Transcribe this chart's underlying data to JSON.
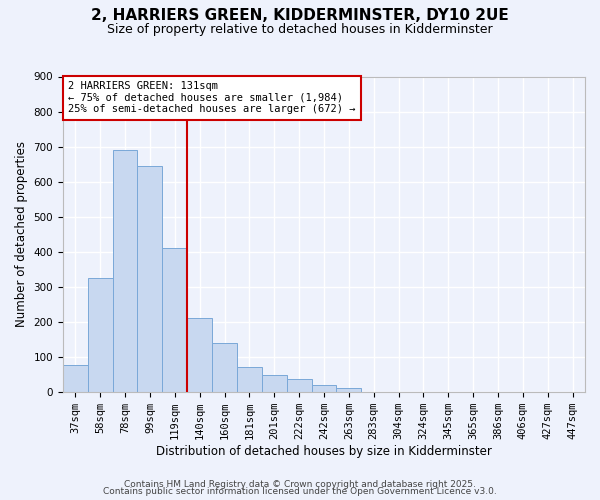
{
  "title": "2, HARRIERS GREEN, KIDDERMINSTER, DY10 2UE",
  "subtitle": "Size of property relative to detached houses in Kidderminster",
  "xlabel": "Distribution of detached houses by size in Kidderminster",
  "ylabel": "Number of detached properties",
  "bin_labels": [
    "37sqm",
    "58sqm",
    "78sqm",
    "99sqm",
    "119sqm",
    "140sqm",
    "160sqm",
    "181sqm",
    "201sqm",
    "222sqm",
    "242sqm",
    "263sqm",
    "283sqm",
    "304sqm",
    "324sqm",
    "345sqm",
    "365sqm",
    "386sqm",
    "406sqm",
    "427sqm",
    "447sqm"
  ],
  "bar_heights": [
    75,
    325,
    690,
    645,
    410,
    210,
    140,
    70,
    47,
    35,
    20,
    10,
    0,
    0,
    0,
    0,
    0,
    0,
    0,
    0,
    0
  ],
  "bar_color": "#c8d8f0",
  "bar_edge_color": "#7aa8d8",
  "vline_x": 4.5,
  "vline_color": "#cc0000",
  "annotation_text": "2 HARRIERS GREEN: 131sqm\n← 75% of detached houses are smaller (1,984)\n25% of semi-detached houses are larger (672) →",
  "annotation_box_color": "#ffffff",
  "annotation_box_edge": "#cc0000",
  "ylim": [
    0,
    900
  ],
  "yticks": [
    0,
    100,
    200,
    300,
    400,
    500,
    600,
    700,
    800,
    900
  ],
  "footer1": "Contains HM Land Registry data © Crown copyright and database right 2025.",
  "footer2": "Contains public sector information licensed under the Open Government Licence v3.0.",
  "bg_color": "#eef2fc",
  "plot_bg_color": "#eef2fc",
  "grid_color": "#ffffff",
  "title_fontsize": 11,
  "subtitle_fontsize": 9,
  "axis_label_fontsize": 8.5,
  "tick_fontsize": 7.5,
  "footer_fontsize": 6.5
}
